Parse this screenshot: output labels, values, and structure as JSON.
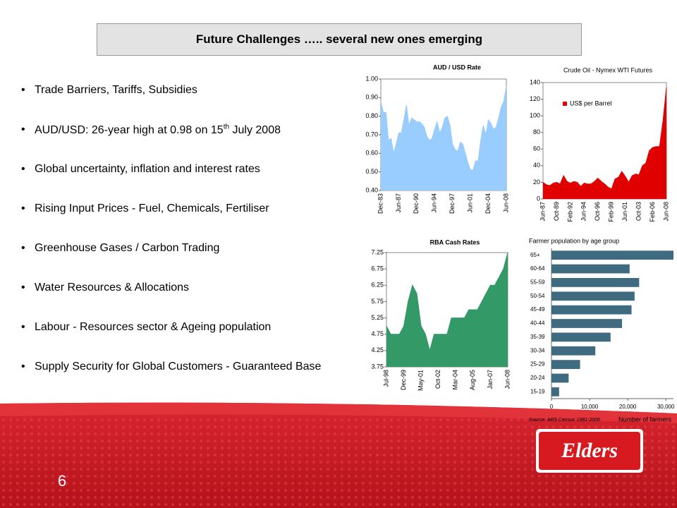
{
  "header": {
    "title": "Future Challenges ….. several new ones emerging"
  },
  "bullets": [
    "Trade Barriers, Tariffs, Subsidies",
    {
      "before": "AUD/USD: 26-year high at 0.98 on 15",
      "sup": "th",
      "after": " July 2008"
    },
    "Global uncertainty, inflation and interest rates",
    "Rising Input Prices - Fuel, Chemicals, Fertiliser",
    "Greenhouse Gases / Carbon Trading",
    "Water Resources & Allocations",
    "Labour - Resources sector &  Ageing population",
    "Supply Security for Global Customers - Guaranteed Base"
  ],
  "chart_data": [
    {
      "type": "area",
      "title": "AUD / USD Rate",
      "color": "#99ccff",
      "grid": false,
      "categories": [
        "Dec-83",
        null,
        null,
        null,
        null,
        null,
        null,
        "Jun-87",
        null,
        null,
        null,
        null,
        null,
        null,
        "Dec-90",
        null,
        null,
        null,
        null,
        null,
        null,
        "Jun-94",
        null,
        null,
        null,
        null,
        null,
        null,
        "Dec-97",
        null,
        null,
        null,
        null,
        null,
        null,
        "Jun-01",
        null,
        null,
        null,
        null,
        null,
        null,
        "Dec-04",
        null,
        null,
        null,
        null,
        null,
        null,
        "Jun-08"
      ],
      "values": [
        0.88,
        0.82,
        0.82,
        0.67,
        0.68,
        0.6,
        0.65,
        0.71,
        0.71,
        0.78,
        0.86,
        0.75,
        0.79,
        0.78,
        0.77,
        0.77,
        0.76,
        0.74,
        0.69,
        0.67,
        0.68,
        0.73,
        0.77,
        0.71,
        0.74,
        0.79,
        0.8,
        0.75,
        0.65,
        0.62,
        0.61,
        0.66,
        0.65,
        0.6,
        0.55,
        0.51,
        0.51,
        0.56,
        0.56,
        0.67,
        0.75,
        0.7,
        0.78,
        0.76,
        0.73,
        0.74,
        0.79,
        0.85,
        0.88,
        0.96
      ],
      "ylim": [
        0.4,
        1.0
      ],
      "yticks": [
        {
          "value": 0.4,
          "label": "0.40"
        },
        {
          "value": 0.5,
          "label": "0.50"
        },
        {
          "value": 0.6,
          "label": "0.60"
        },
        {
          "value": 0.7,
          "label": "0.70"
        },
        {
          "value": 0.8,
          "label": "0.80"
        },
        {
          "value": 0.9,
          "label": "0.90"
        },
        {
          "value": 1.0,
          "label": "1.00"
        }
      ]
    },
    {
      "type": "area",
      "title": "Crude Oil - Nymex WTI Futures",
      "grid": false,
      "legend": "upper left",
      "categories": [
        "Jun-87",
        null,
        null,
        null,
        "Oct-89",
        null,
        null,
        null,
        "Feb-92",
        null,
        null,
        null,
        "Jun-94",
        null,
        null,
        null,
        "Oct-96",
        null,
        null,
        null,
        "Feb-99",
        null,
        null,
        null,
        "Jun-01",
        null,
        null,
        null,
        "Oct-03",
        null,
        null,
        null,
        "Feb-06",
        null,
        null,
        null,
        "Jun-08"
      ],
      "series": [
        {
          "name": "US$ per Barrel",
          "color": "#e00000",
          "values": [
            20,
            17,
            16,
            19,
            20,
            18,
            28,
            21,
            19,
            21,
            20,
            15,
            19,
            18,
            18,
            21,
            25,
            21,
            18,
            14,
            12,
            24,
            26,
            33,
            27,
            20,
            28,
            30,
            29,
            40,
            43,
            58,
            62,
            63,
            63,
            94,
            134
          ]
        }
      ],
      "ylim": [
        0,
        140
      ],
      "yticks": [
        0,
        20,
        40,
        60,
        80,
        100,
        120,
        140
      ]
    },
    {
      "type": "area",
      "title": "RBA Cash Rates",
      "color": "#339966",
      "grid": false,
      "categories": [
        "Jul-98",
        null,
        null,
        null,
        "Dec-99",
        null,
        null,
        null,
        "May-01",
        null,
        null,
        null,
        "Oct-02",
        null,
        null,
        null,
        "Mar-04",
        null,
        null,
        null,
        "Aug-05",
        null,
        null,
        null,
        "Jan-07",
        null,
        null,
        null,
        "Jun-08"
      ],
      "values": [
        5.0,
        4.75,
        4.75,
        4.75,
        5.0,
        5.75,
        6.25,
        6.0,
        5.0,
        4.75,
        4.25,
        4.75,
        4.75,
        4.75,
        4.75,
        5.25,
        5.25,
        5.25,
        5.25,
        5.5,
        5.5,
        5.5,
        5.75,
        6.0,
        6.25,
        6.25,
        6.5,
        6.75,
        7.25
      ],
      "ylim": [
        3.75,
        7.25
      ],
      "yticks": [
        3.75,
        4.25,
        4.75,
        5.25,
        5.75,
        6.25,
        6.75,
        7.25
      ]
    },
    {
      "type": "bar",
      "orientation": "horizontal",
      "title": "Farmer population by age group",
      "color": "#3f6b80",
      "grid": false,
      "categories": [
        "65+",
        "60-64",
        "55-59",
        "50-54",
        "45-49",
        "40-44",
        "35-39",
        "30-34",
        "25-29",
        "20-24",
        "15-19"
      ],
      "values": [
        32000,
        20500,
        23000,
        21800,
        21000,
        18500,
        15500,
        11500,
        7500,
        4500,
        2000
      ],
      "xlim": [
        0,
        32000
      ],
      "xticks": [
        0,
        {
          "value": 10000,
          "label": "10,000"
        },
        {
          "value": 20000,
          "label": "20,000"
        },
        {
          "value": 30000,
          "label": "30,000"
        }
      ],
      "x_label": "Number of farmers",
      "source": "Source: ABS Census 1981-2006"
    }
  ],
  "footer": {
    "page_number": "6",
    "logo": "Elders"
  }
}
